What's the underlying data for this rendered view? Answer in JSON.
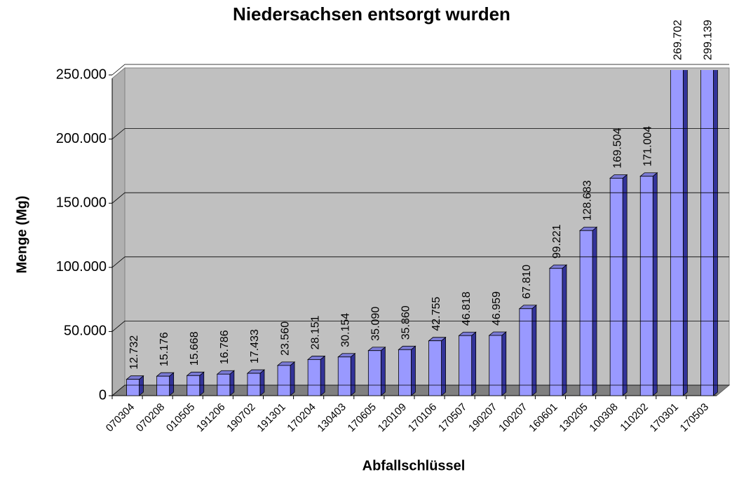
{
  "chart_data": {
    "type": "bar",
    "title": "Niedersachsen entsorgt wurden",
    "xlabel": "Abfallschlüssel",
    "ylabel": "Menge (Mg)",
    "categories": [
      "070304",
      "070208",
      "010505",
      "191206",
      "190702",
      "191301",
      "170204",
      "130403",
      "170605",
      "120109",
      "170106",
      "170507",
      "190207",
      "100207",
      "160601",
      "130205",
      "100308",
      "110202",
      "170301",
      "170503"
    ],
    "values": [
      12732,
      15176,
      15668,
      16786,
      17433,
      23560,
      28151,
      30154,
      35090,
      35860,
      42755,
      46818,
      46959,
      67810,
      99221,
      128683,
      169504,
      171004,
      269702,
      299139
    ],
    "value_labels": [
      "12.732",
      "15.176",
      "15.668",
      "16.786",
      "17.433",
      "23.560",
      "28.151",
      "30.154",
      "35.090",
      "35.860",
      "42.755",
      "46.818",
      "46.959",
      "67.810",
      "99.221",
      "128.683",
      "169.504",
      "171.004",
      "269.702",
      "299.139"
    ],
    "color": "#9999ff",
    "ylim": [
      0,
      250000
    ],
    "yticks": [
      0,
      {
        "value": 50000,
        "label": "50.000"
      },
      {
        "value": 100000,
        "label": "100.000"
      },
      {
        "value": 150000,
        "label": "150.000"
      },
      {
        "value": 200000,
        "label": "200.000"
      },
      {
        "value": 250000,
        "label": "250.000"
      }
    ],
    "grid": true
  }
}
